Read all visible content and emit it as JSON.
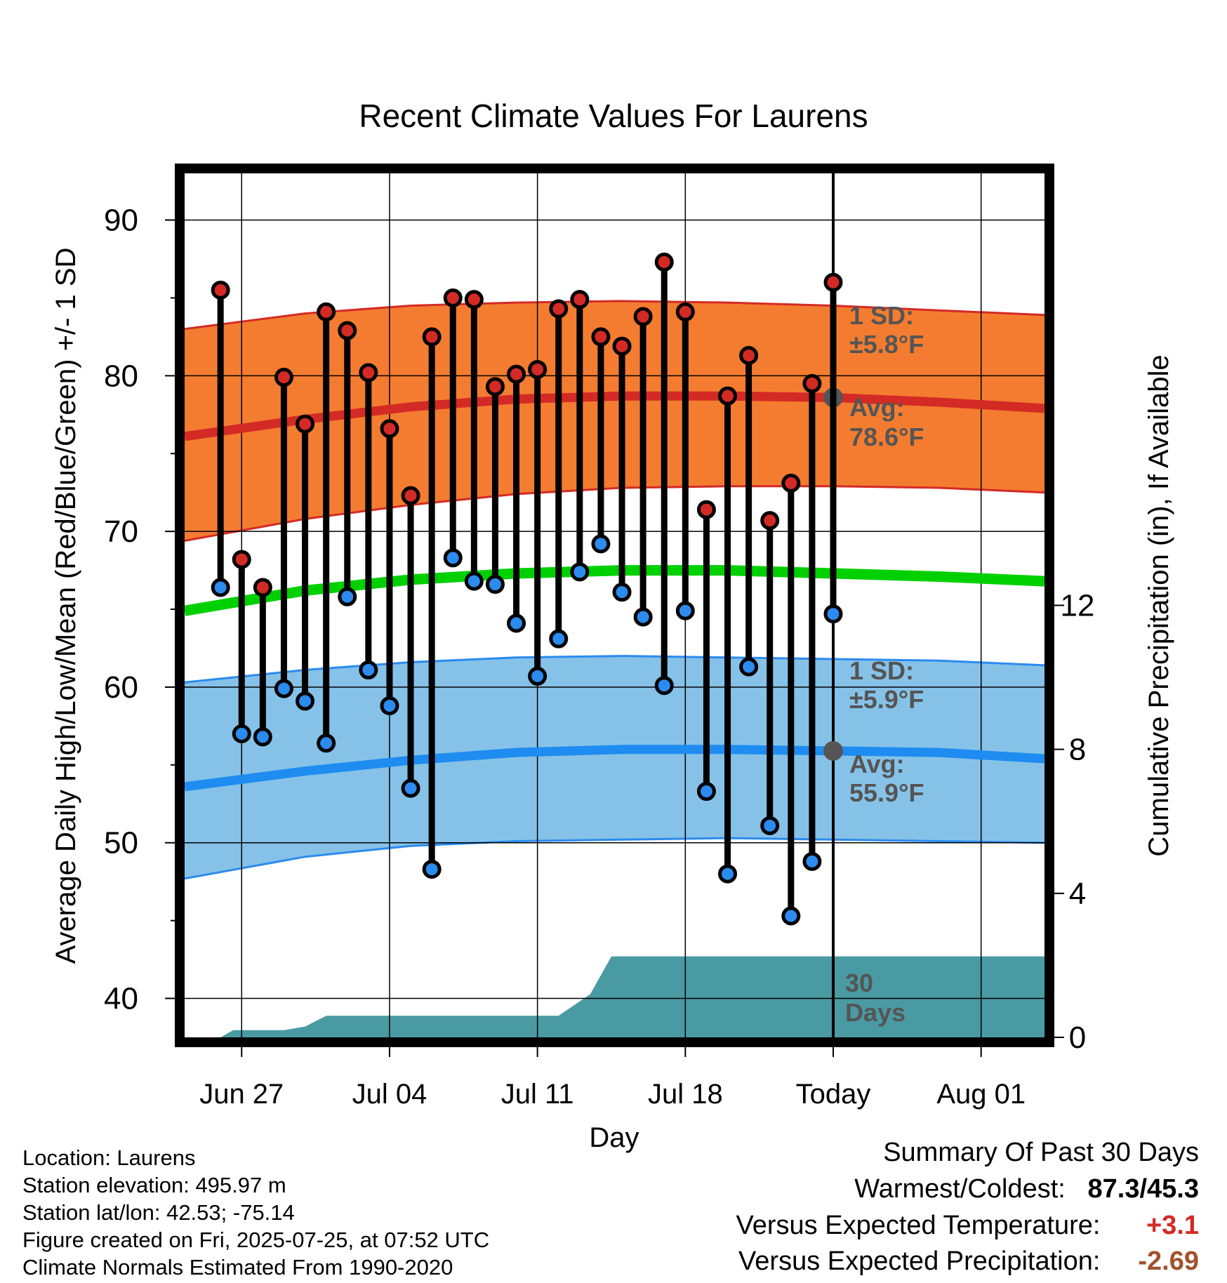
{
  "chart_data": {
    "type": "line",
    "title": "Recent Climate Values For Laurens",
    "xlabel": "Day",
    "ylabel": "Average Daily High/Low/Mean (Red/Blue/Green) +/- 1 SD",
    "y2label": "Cumulative Precipitation (in), If Available",
    "ylim": [
      37.5,
      93
    ],
    "y2lim": [
      0,
      24
    ],
    "yticks": [
      40,
      50,
      60,
      70,
      80,
      90
    ],
    "y2ticks": [
      0,
      4,
      8,
      12
    ],
    "xticks": [
      "Jun 27",
      "Jul 04",
      "Jul 11",
      "Jul 18",
      "Today",
      "Aug 01"
    ],
    "xtick_days": [
      2,
      9,
      16,
      23,
      30,
      37
    ],
    "xlim": [
      -0.7,
      40
    ],
    "grid": true,
    "daily": {
      "day": [
        1,
        2,
        3,
        4,
        5,
        6,
        7,
        8,
        9,
        10,
        11,
        12,
        13,
        14,
        15,
        16,
        17,
        18,
        19,
        20,
        21,
        22,
        23,
        24,
        25,
        26,
        27,
        28,
        29,
        30
      ],
      "high": [
        85.5,
        68.2,
        66.4,
        79.9,
        76.9,
        84.1,
        82.9,
        80.2,
        76.6,
        72.3,
        82.5,
        85.0,
        84.9,
        79.3,
        80.1,
        80.4,
        84.3,
        84.9,
        82.5,
        81.9,
        83.8,
        87.3,
        84.1,
        71.4,
        78.7,
        81.3,
        70.7,
        73.1,
        79.5,
        86.0
      ],
      "low": [
        66.4,
        57.0,
        56.8,
        59.9,
        59.1,
        56.4,
        65.8,
        61.1,
        58.8,
        53.5,
        48.3,
        68.3,
        66.8,
        66.6,
        64.1,
        60.7,
        63.1,
        67.4,
        69.2,
        66.1,
        64.5,
        60.1,
        64.9,
        53.3,
        48.0,
        61.3,
        51.1,
        45.3,
        48.8,
        64.7
      ]
    },
    "normals": {
      "day": [
        -0.7,
        5,
        10,
        15,
        20,
        25,
        30,
        35,
        40
      ],
      "high_avg": [
        76.1,
        77.2,
        78.0,
        78.5,
        78.7,
        78.7,
        78.6,
        78.3,
        77.9
      ],
      "high_sd_upper": [
        83.0,
        84.0,
        84.5,
        84.7,
        84.8,
        84.7,
        84.5,
        84.2,
        83.9
      ],
      "high_sd_lower": [
        69.4,
        70.8,
        71.7,
        72.4,
        72.8,
        72.9,
        72.9,
        72.8,
        72.5
      ],
      "mean_avg": [
        64.9,
        66.2,
        66.9,
        67.3,
        67.5,
        67.5,
        67.3,
        67.1,
        66.8
      ],
      "low_avg": [
        53.6,
        54.6,
        55.3,
        55.8,
        56.0,
        56.0,
        55.9,
        55.8,
        55.4
      ],
      "low_sd_upper": [
        60.3,
        61.1,
        61.6,
        61.9,
        62.0,
        61.9,
        61.8,
        61.7,
        61.4
      ],
      "low_sd_lower": [
        47.7,
        49.1,
        49.8,
        50.1,
        50.2,
        50.3,
        50.2,
        50.1,
        50.0
      ]
    },
    "precipitation": {
      "day": [
        -0.7,
        0,
        1,
        1.6,
        4,
        5,
        6,
        10,
        13,
        15,
        17,
        18.5,
        19.5,
        30,
        40
      ],
      "cumulative_in": [
        0,
        0,
        0,
        0.2,
        0.2,
        0.3,
        0.6,
        0.6,
        0.6,
        0.6,
        0.6,
        1.2,
        2.25,
        2.25,
        2.25
      ]
    },
    "today_marker": {
      "day": 30,
      "label": "30 Days"
    },
    "annotations": {
      "high_sd": "1 SD:",
      "high_sd_value": "±5.8°F",
      "high_avg": "Avg:",
      "high_avg_value": "78.6°F",
      "low_sd": "1 SD:",
      "low_sd_value": "±5.9°F",
      "low_avg": "Avg:",
      "low_avg_value": "55.9°F",
      "today_label_1": "30",
      "today_label_2": "Days"
    },
    "colors": {
      "high_band": "#f47c30",
      "high_line": "#d42a25",
      "low_band": "#86c2e8",
      "low_line": "#1e8cf0",
      "low_edge": "#2b8bef",
      "mean_line": "#00d000",
      "precip": "#4a9aa3",
      "high_marker": "#d42a25",
      "low_marker": "#2b8bef",
      "annotation": "#555555"
    }
  },
  "info": {
    "location": "Location: Laurens",
    "elevation": "Station elevation: 495.97 m",
    "latlon": "Station lat/lon: 42.53; -75.14",
    "created": "Figure created on Fri, 2025-07-25, at 07:52 UTC",
    "normals": "Climate Normals Estimated From 1990-2020"
  },
  "summary": {
    "title": "Summary Of Past 30 Days",
    "warm_cold_label": "Warmest/Coldest:",
    "warm_cold_value": "87.3/45.3",
    "temp_label": "Versus Expected Temperature:",
    "temp_value": "+3.1",
    "temp_color": "#d42a25",
    "precip_label": "Versus Expected Precipitation:",
    "precip_value": "-2.69",
    "precip_color": "#a0522d"
  }
}
